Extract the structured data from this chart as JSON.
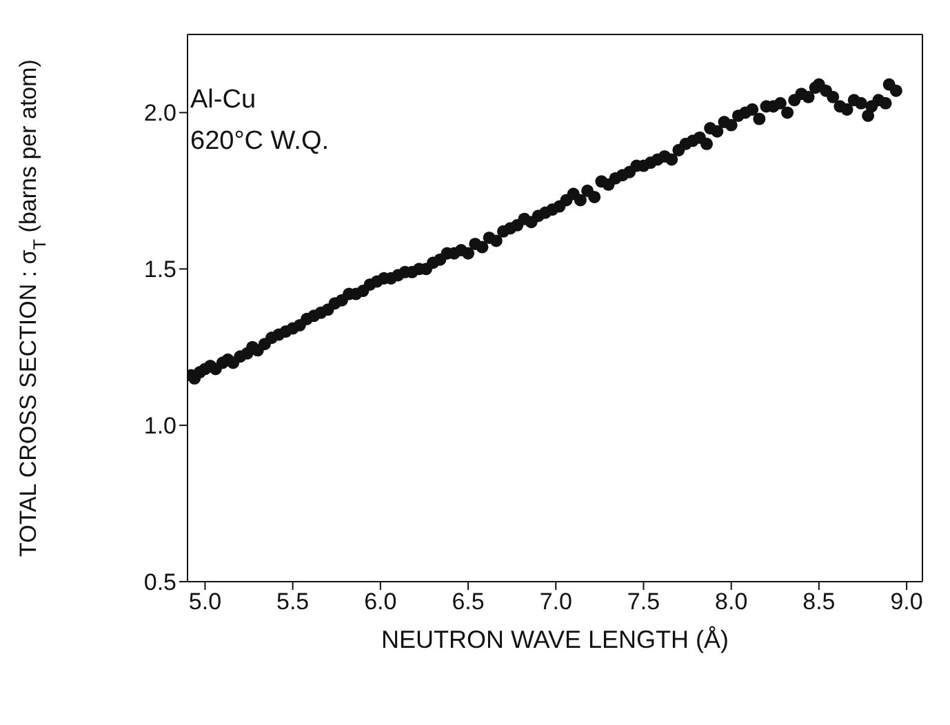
{
  "chart_data": {
    "type": "scatter",
    "xlabel": "NEUTRON WAVE LENGTH (Å)",
    "ylabel": "TOTAL CROSS SECTION : σ$_{T}$ (barns per atom)",
    "annotations": [
      "Al-Cu",
      "620°C W.Q."
    ],
    "xlim": [
      4.9,
      9.09
    ],
    "xticks": [
      {
        "value": 5,
        "label": "5.0"
      },
      {
        "value": 5.5,
        "label": "5.5"
      },
      {
        "value": 6,
        "label": "6.0"
      },
      {
        "value": 6.5,
        "label": "6.5"
      },
      {
        "value": 7,
        "label": "7.0"
      },
      {
        "value": 7.5,
        "label": "7.5"
      },
      {
        "value": 8,
        "label": "8.0"
      },
      {
        "value": 8.5,
        "label": "8.5"
      },
      {
        "value": 9,
        "label": "9.0"
      }
    ],
    "ylim": [
      0.5,
      2.25
    ],
    "yticks": [
      {
        "value": 0.5,
        "label": "0.5"
      },
      {
        "value": 1,
        "label": "1.0"
      },
      {
        "value": 1.5,
        "label": "1.5"
      },
      {
        "value": 2,
        "label": "2.0"
      }
    ],
    "marker": "circle",
    "series": [
      {
        "color": "#111111",
        "x": [
          4.92,
          4.94,
          4.97,
          5.0,
          5.03,
          5.06,
          5.1,
          5.13,
          5.16,
          5.2,
          5.24,
          5.27,
          5.3,
          5.34,
          5.38,
          5.42,
          5.46,
          5.5,
          5.54,
          5.58,
          5.62,
          5.66,
          5.7,
          5.74,
          5.78,
          5.82,
          5.86,
          5.9,
          5.94,
          5.98,
          6.02,
          6.06,
          6.1,
          6.14,
          6.18,
          6.22,
          6.26,
          6.3,
          6.34,
          6.38,
          6.42,
          6.46,
          6.5,
          6.54,
          6.58,
          6.62,
          6.66,
          6.7,
          6.74,
          6.78,
          6.82,
          6.86,
          6.9,
          6.94,
          6.98,
          7.02,
          7.06,
          7.1,
          7.14,
          7.18,
          7.22,
          7.26,
          7.3,
          7.34,
          7.38,
          7.42,
          7.46,
          7.5,
          7.54,
          7.58,
          7.62,
          7.66,
          7.7,
          7.74,
          7.78,
          7.82,
          7.86,
          7.88,
          7.92,
          7.96,
          8.0,
          8.04,
          8.08,
          8.12,
          8.16,
          8.2,
          8.24,
          8.28,
          8.32,
          8.36,
          8.4,
          8.44,
          8.48,
          8.5,
          8.54,
          8.58,
          8.62,
          8.66,
          8.7,
          8.74,
          8.78,
          8.8,
          8.84,
          8.88,
          8.9,
          8.94
        ],
        "values": [
          1.16,
          1.15,
          1.17,
          1.18,
          1.19,
          1.18,
          1.2,
          1.21,
          1.2,
          1.22,
          1.23,
          1.25,
          1.24,
          1.26,
          1.28,
          1.29,
          1.3,
          1.31,
          1.32,
          1.34,
          1.35,
          1.36,
          1.37,
          1.39,
          1.4,
          1.42,
          1.42,
          1.43,
          1.45,
          1.46,
          1.47,
          1.47,
          1.48,
          1.49,
          1.49,
          1.5,
          1.5,
          1.52,
          1.53,
          1.55,
          1.55,
          1.56,
          1.55,
          1.58,
          1.57,
          1.6,
          1.59,
          1.62,
          1.63,
          1.64,
          1.66,
          1.65,
          1.67,
          1.68,
          1.69,
          1.7,
          1.72,
          1.74,
          1.72,
          1.75,
          1.73,
          1.78,
          1.77,
          1.79,
          1.8,
          1.81,
          1.83,
          1.83,
          1.84,
          1.85,
          1.86,
          1.85,
          1.88,
          1.9,
          1.91,
          1.92,
          1.9,
          1.95,
          1.94,
          1.97,
          1.96,
          1.99,
          2.0,
          2.01,
          1.98,
          2.02,
          2.02,
          2.03,
          2.0,
          2.04,
          2.06,
          2.05,
          2.08,
          2.09,
          2.07,
          2.05,
          2.02,
          2.01,
          2.04,
          2.03,
          1.99,
          2.02,
          2.04,
          2.03,
          2.09,
          2.07
        ]
      }
    ]
  }
}
